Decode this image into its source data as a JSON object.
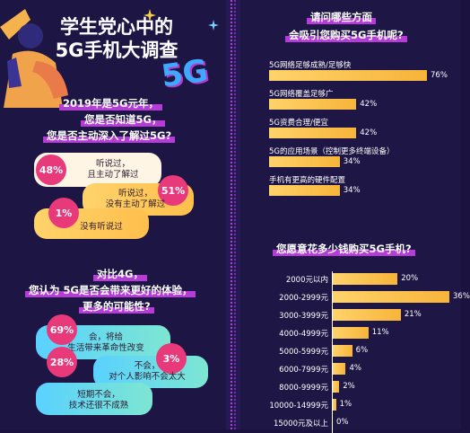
{
  "left": {
    "title_line1": "学生党心中的",
    "title_line2": "5G手机大调查",
    "badge_5g": "5G",
    "q1": {
      "line1": "2019年是5G元年，",
      "line2": "您是否知道5G，",
      "line3": "您是否主动深入了解过5G?"
    },
    "q1_answers": [
      {
        "pct": "48%",
        "line1": "听说过，",
        "line2": "且主动了解过"
      },
      {
        "pct": "51%",
        "line1": "听说过，",
        "line2": "没有主动了解过"
      },
      {
        "pct": "1%",
        "line1": "没有听说过",
        "line2": ""
      }
    ],
    "q2": {
      "line1": "对比4G，",
      "line2": "您认为 5G是否会带来更好的体验，",
      "line3": "更多的可能性?"
    },
    "q2_answers": [
      {
        "pct": "69%",
        "line1": "会，将给",
        "line2": "生活带来革命性改变"
      },
      {
        "pct": "3%",
        "line1": "不会，",
        "line2": "对个人影响不会太大"
      },
      {
        "pct": "28%",
        "line1": "短期不会，",
        "line2": "技术还很不成熟"
      }
    ]
  },
  "chart_data": [
    {
      "type": "bar",
      "title": "请问哪些方面会吸引您购买5G手机呢?",
      "title_line1": "请问哪些方面",
      "title_line2": "会吸引您购买5G手机呢?",
      "categories": [
        "5G网络足够成熟/足够快",
        "5G网络覆盖足够广",
        "5G资费合理/便宜",
        "5G的应用场景（控制更多终端设备）",
        "手机有更高的硬件配置"
      ],
      "values": [
        76,
        42,
        42,
        34,
        34
      ],
      "value_labels": [
        "76%",
        "42%",
        "42%",
        "34%",
        "34%"
      ],
      "xlim": [
        0,
        100
      ]
    },
    {
      "type": "bar",
      "title": "您愿意花多少钱购买5G手机?",
      "categories": [
        "2000元以内",
        "2000-2999元",
        "3000-3999元",
        "4000-4999元",
        "5000-5999元",
        "6000-7999元",
        "8000-9999元",
        "10000-14999元",
        "15000元及以上"
      ],
      "values": [
        20,
        36,
        21,
        11,
        6,
        4,
        2,
        1,
        0
      ],
      "value_labels": [
        "20%",
        "36%",
        "21%",
        "11%",
        "6%",
        "4%",
        "2%",
        "1%",
        "0%"
      ],
      "xlim": [
        0,
        40
      ]
    }
  ],
  "colors": {
    "background": "#1d1544",
    "bar": "#f7b43a",
    "accent": "#e8397a",
    "highlight": "#b53cd6"
  }
}
